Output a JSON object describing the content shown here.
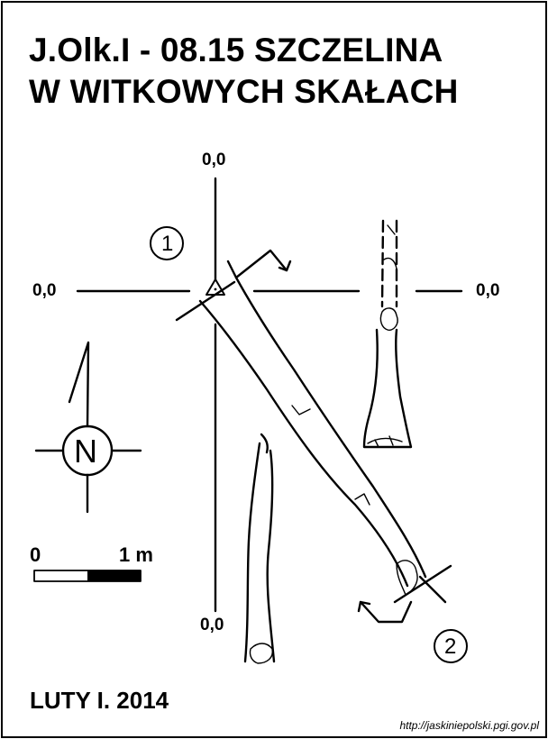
{
  "title": {
    "line1": "J.Olk.I - 08.15  SZCZELINA",
    "line2": "W WITKOWYCH SKAŁACH"
  },
  "crosshair_labels": {
    "top": "0,0",
    "left": "0,0",
    "right": "0,0",
    "bottom": "0,0"
  },
  "markers": {
    "entrance_1": "1",
    "entrance_2": "2"
  },
  "compass": {
    "letter": "N"
  },
  "scale_bar": {
    "start_label": "0",
    "end_label": "1 m"
  },
  "date": "LUTY I. 2014",
  "source_url": "http://jaskiniepolski.pgi.gov.pl"
}
